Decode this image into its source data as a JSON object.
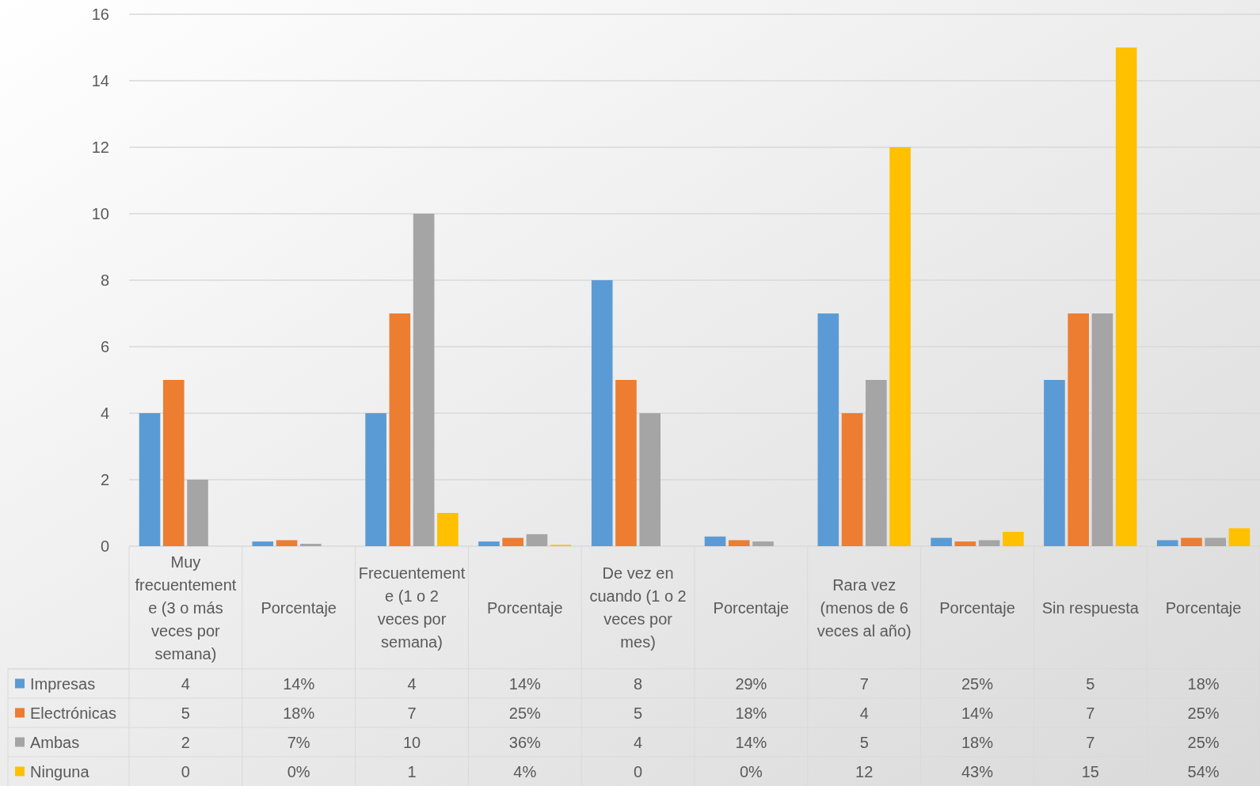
{
  "chart_data": {
    "type": "bar",
    "categories": [
      "Muy frecuentemente (3 o más veces por semana)",
      "Porcentaje",
      "Frecuentemente (1 o 2 veces por semana)",
      "Porcentaje",
      "De vez en cuando (1 o 2 veces por mes)",
      "Porcentaje",
      "Rara vez (menos de 6 veces al año)",
      "Porcentaje",
      "Sin respuesta",
      "Porcentaje"
    ],
    "series": [
      {
        "name": "Impresas",
        "color": "#5b9bd5",
        "values": [
          4,
          0.14,
          4,
          0.14,
          8,
          0.29,
          7,
          0.25,
          5,
          0.18
        ],
        "value_labels": [
          "4",
          "14%",
          "4",
          "14%",
          "8",
          "29%",
          "7",
          "25%",
          "5",
          "18%"
        ]
      },
      {
        "name": "Electrónicas",
        "color": "#ed7d31",
        "values": [
          5,
          0.18,
          7,
          0.25,
          5,
          0.18,
          4,
          0.14,
          7,
          0.25
        ],
        "value_labels": [
          "5",
          "18%",
          "7",
          "25%",
          "5",
          "18%",
          "4",
          "14%",
          "7",
          "25%"
        ]
      },
      {
        "name": "Ambas",
        "color": "#a5a5a5",
        "values": [
          2,
          0.07,
          10,
          0.36,
          4,
          0.14,
          5,
          0.18,
          7,
          0.25
        ],
        "value_labels": [
          "2",
          "7%",
          "10",
          "36%",
          "4",
          "14%",
          "5",
          "18%",
          "7",
          "25%"
        ]
      },
      {
        "name": "Ninguna",
        "color": "#ffc000",
        "values": [
          0,
          0,
          1,
          0.04,
          0,
          0,
          12,
          0.43,
          15,
          0.54
        ],
        "value_labels": [
          "0",
          "0%",
          "1",
          "4%",
          "0",
          "0%",
          "12",
          "43%",
          "15",
          "54%"
        ]
      }
    ],
    "ylim": [
      0,
      16
    ],
    "yticks": [
      0,
      2,
      4,
      6,
      8,
      10,
      12,
      14,
      16
    ],
    "grid": "y",
    "legend": "bottom"
  }
}
